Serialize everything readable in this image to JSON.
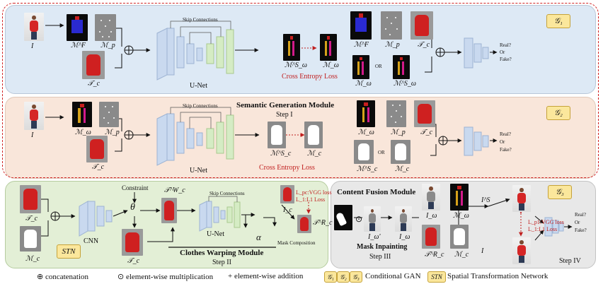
{
  "panels": {
    "top": {
      "gan_tag": "𝒢₁",
      "skip_label": "Skip Connections",
      "net_label": "U-Net",
      "loss_label": "Cross Entropy Loss",
      "disc_q1": "Real?",
      "disc_q2": "Or",
      "disc_q3": "Fake?",
      "or_label": "OR"
    },
    "middle": {
      "gan_tag": "𝒢₂",
      "title": "Semantic Generation Module",
      "step": "Step I",
      "skip_label": "Skip Connections",
      "net_label": "U-Net",
      "loss_label": "Cross Entropy Loss",
      "disc_q1": "Real?",
      "disc_q2": "Or",
      "disc_q3": "Fake?",
      "or_label": "OR"
    },
    "stn": {
      "tag": "STN",
      "cnn": "CNN",
      "constraint": "Constraint",
      "theta": "θ",
      "skip_label": "Skip Connections",
      "net_label": "U-Net",
      "alpha": "α",
      "title": "Clothes Warping Module",
      "step": "Step II",
      "loss1": "L_pc:VGG loss",
      "loss2": "L_1:L1 Loss",
      "mask_comp": "Mask Composition"
    },
    "fusion": {
      "title": "Content Fusion Module",
      "gan_tag": "𝒢₃",
      "inpaint": "Mask Inpainting",
      "step": "Step III",
      "loss1": "L_p1:VGG loss",
      "loss2": "L_1:L1 Loss",
      "disc_q1": "Real?",
      "disc_q2": "Or",
      "disc_q3": "Fake?",
      "step4": "Step IV",
      "odot": "⊙"
    }
  },
  "symbols": {
    "I": "I",
    "MF": "ℳ^F",
    "Mp": "ℳ_p",
    "Tc": "𝒯_c",
    "MSw": "ℳ^S_ω",
    "Mw": "ℳ_ω",
    "MSc": "ℳ^S_c",
    "Mc": "ℳ_c",
    "TcW": "𝒯^W_c",
    "Ic": "I_c",
    "TcR": "𝒯^R_c",
    "Iw_p": "I_ω'",
    "Iw": "I_ω",
    "IS": "I^S"
  },
  "legend": {
    "concat": "⊕ concatenation",
    "ewm": "⊙ element-wise multiplication",
    "ewa": "+ element-wise addition",
    "g1": "𝒢₁",
    "g2": "𝒢₂",
    "g3": "𝒢₃",
    "cgan": "Conditional GAN",
    "stn_tag": "STN",
    "stn_desc": "Spatial Transformation Network"
  },
  "colors": {
    "unet_blue": "#c9d9ef",
    "unet_green": "#d5ecc4",
    "loss_red": "#c01e1e",
    "tag_yellow": "#fbe79c"
  }
}
